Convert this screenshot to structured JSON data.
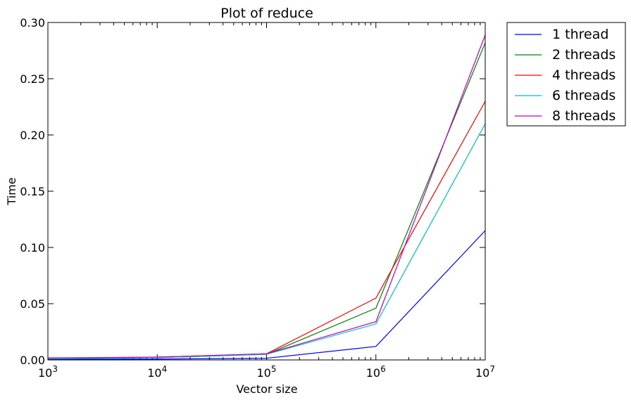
{
  "chart_data": {
    "type": "line",
    "title": "Plot of reduce",
    "xlabel": "Vector size",
    "ylabel": "Time",
    "xscale": "log",
    "xlim": [
      1000,
      10000000
    ],
    "ylim": [
      0,
      0.3
    ],
    "x": [
      1000,
      10000,
      100000,
      1000000,
      10000000
    ],
    "xtick_labels": [
      {
        "base": "10",
        "exp": "3"
      },
      {
        "base": "10",
        "exp": "4"
      },
      {
        "base": "10",
        "exp": "5"
      },
      {
        "base": "10",
        "exp": "6"
      },
      {
        "base": "10",
        "exp": "7"
      }
    ],
    "yticks": [
      "0.00",
      "0.05",
      "0.10",
      "0.15",
      "0.20",
      "0.25",
      "0.30"
    ],
    "legend_position": "outside upper right",
    "grid": false,
    "series": [
      {
        "name": "1 thread",
        "color": "#0000ff",
        "values": [
          0.0005,
          0.0008,
          0.0015,
          0.012,
          0.115
        ]
      },
      {
        "name": "2 threads",
        "color": "#008000",
        "values": [
          0.001,
          0.002,
          0.005,
          0.046,
          0.282
        ]
      },
      {
        "name": "4 threads",
        "color": "#ff0000",
        "values": [
          0.0015,
          0.0025,
          0.0055,
          0.055,
          0.23
        ]
      },
      {
        "name": "6 threads",
        "color": "#00bfbf",
        "values": [
          0.001,
          0.002,
          0.005,
          0.032,
          0.21
        ]
      },
      {
        "name": "8 threads",
        "color": "#bf00bf",
        "values": [
          0.0018,
          0.0025,
          0.0055,
          0.034,
          0.289
        ]
      }
    ]
  }
}
